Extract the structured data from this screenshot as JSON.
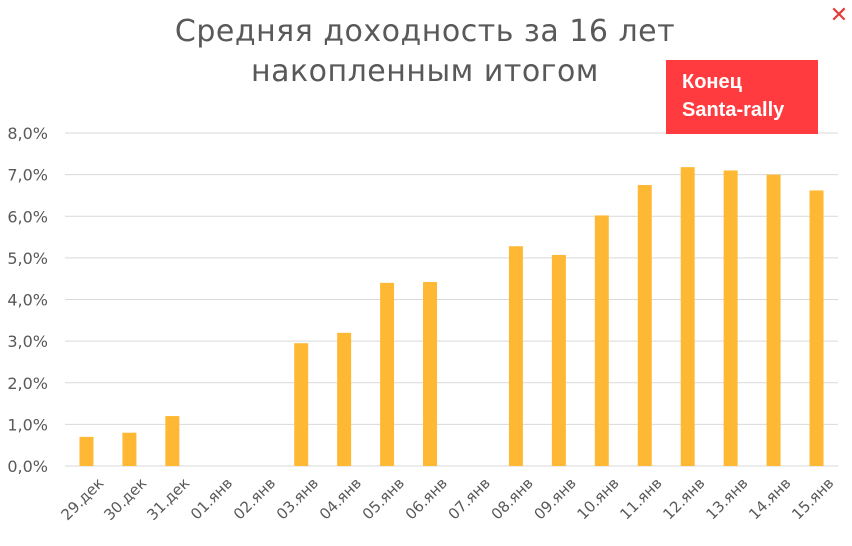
{
  "chart_data": {
    "type": "bar",
    "title": "Средняя доходность за 16 лет накопленным итогом",
    "categories": [
      "29.дек",
      "30.дек",
      "31.дек",
      "01.янв",
      "02.янв",
      "03.янв",
      "04.янв",
      "05.янв",
      "06.янв",
      "07.янв",
      "08.янв",
      "09.янв",
      "10.янв",
      "11.янв",
      "12.янв",
      "13.янв",
      "14.янв",
      "15.янв"
    ],
    "values": [
      0.7,
      0.8,
      1.2,
      null,
      null,
      2.95,
      3.2,
      4.4,
      4.42,
      null,
      5.28,
      5.07,
      6.02,
      6.75,
      7.18,
      7.1,
      7.0,
      6.62
    ],
    "ylim": [
      0,
      8
    ],
    "yticks": [
      "0,0%",
      "1,0%",
      "2,0%",
      "3,0%",
      "4,0%",
      "5,0%",
      "6,0%",
      "7,0%",
      "8,0%"
    ],
    "grid": true,
    "bar_color": "#ffb833",
    "annotation": {
      "line1": "Конец",
      "line2": "Santa-rally",
      "color": "#ff3b3f"
    }
  },
  "close_icon": "close-icon"
}
